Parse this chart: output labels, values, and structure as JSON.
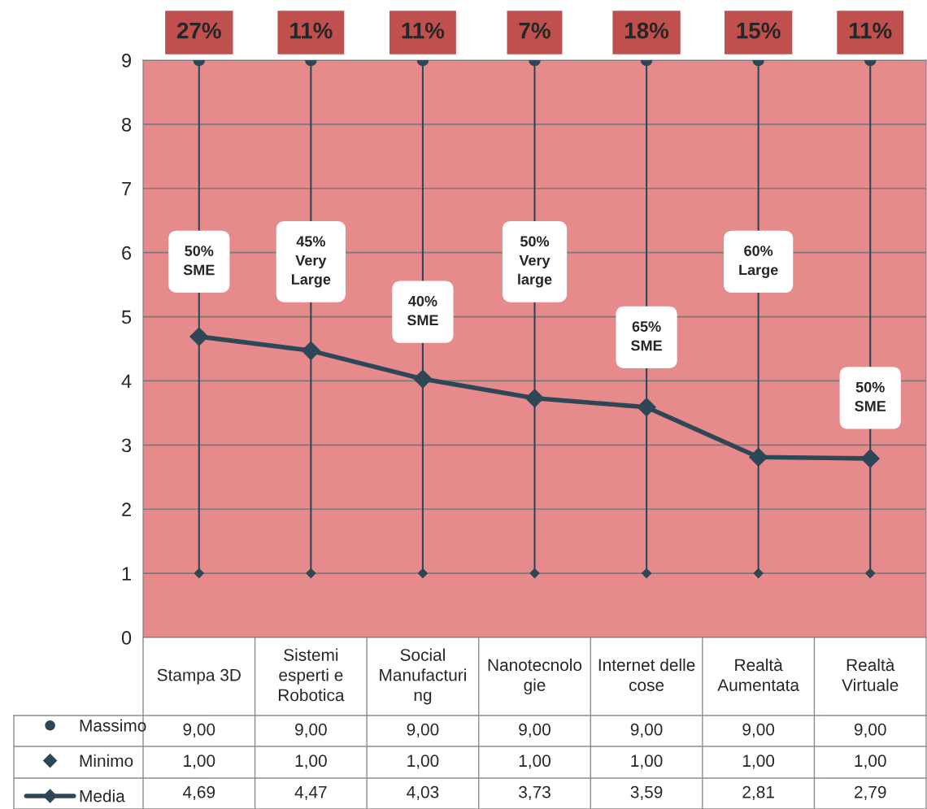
{
  "chart_data": {
    "type": "line",
    "categories": [
      "Stampa 3D",
      "Sistemi\nesperti e\nRobotica",
      "Social\nManufacturi\nng",
      "Nanotecnolo\ngie",
      "Internet delle\ncose",
      "Realtà\nAumentata",
      "Realtà\nVirtuale"
    ],
    "series": [
      {
        "name": "Massimo",
        "type": "scatter",
        "color": "#2e4756",
        "marker": "circle",
        "values": [
          9,
          9,
          9,
          9,
          9,
          9,
          9
        ],
        "value_labels": [
          "9,00",
          "9,00",
          "9,00",
          "9,00",
          "9,00",
          "9,00",
          "9,00"
        ]
      },
      {
        "name": "Minimo",
        "type": "scatter",
        "color": "#2e4756",
        "marker": "diamond",
        "values": [
          1,
          1,
          1,
          1,
          1,
          1,
          1
        ],
        "value_labels": [
          "1,00",
          "1,00",
          "1,00",
          "1,00",
          "1,00",
          "1,00",
          "1,00"
        ]
      },
      {
        "name": "Media",
        "color": "#2e4756",
        "marker": "diamond",
        "line_style": "solid",
        "values": [
          4.69,
          4.47,
          4.03,
          3.73,
          3.59,
          2.81,
          2.79
        ],
        "value_labels": [
          "4,69",
          "4,47",
          "4,03",
          "3,73",
          "3,59",
          "2,81",
          "2,79"
        ]
      }
    ],
    "ylim": [
      0,
      9
    ],
    "yticks": [
      0,
      1,
      2,
      3,
      4,
      5,
      6,
      7,
      8,
      9
    ],
    "grid": true,
    "tick_labels": "y",
    "legend": "bottom",
    "annotations": [
      "27%",
      "11%",
      "11%",
      "7%",
      "18%",
      "15%",
      "11%",
      "50%\nSME",
      "45%\nVery\nLarge",
      "40%\nSME",
      "50%\nVery\nlarge",
      "65%\nSME",
      "60%\nLarge",
      "50%\nSME"
    ]
  }
}
